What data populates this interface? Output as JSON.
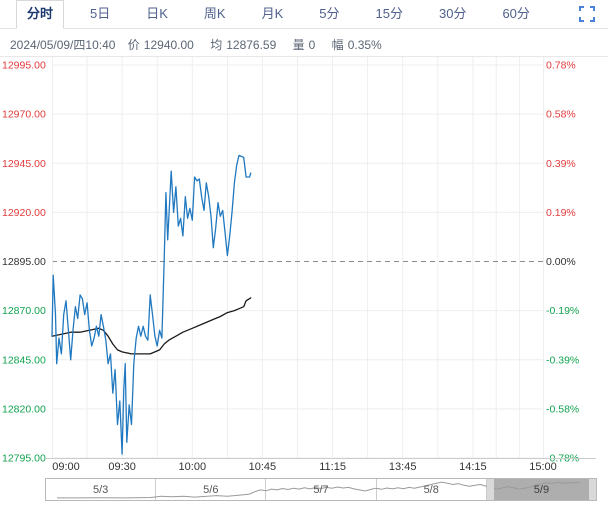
{
  "tabs": {
    "items": [
      {
        "label": "分时",
        "active": true
      },
      {
        "label": "5日"
      },
      {
        "label": "日K"
      },
      {
        "label": "周K"
      },
      {
        "label": "月K"
      },
      {
        "label": "5分"
      },
      {
        "label": "15分"
      },
      {
        "label": "30分"
      },
      {
        "label": "60分"
      }
    ],
    "fullscreen_icon_color": "#4a82d9"
  },
  "status": {
    "datetime": "2024/05/09/四10:40",
    "items": [
      {
        "label": "价",
        "value": "12940.00"
      },
      {
        "label": "均",
        "value": "12876.59"
      },
      {
        "label": "量",
        "value": "0"
      },
      {
        "label": "幅",
        "value": "0.35%"
      }
    ]
  },
  "chart_data": {
    "type": "line",
    "title": "",
    "xlabel": "",
    "ylabel": "",
    "prev_close": 12895,
    "ylim": [
      12795,
      12995
    ],
    "grid": true,
    "legend": "none",
    "colors": {
      "up": "#e23b3b",
      "down": "#11a350",
      "flat": "#333333",
      "grid": "#eeeeee",
      "baseline_dash": "#8a8a8a",
      "axis": "#cccccc",
      "tick_text": "#333333",
      "price_line": "#2079c0",
      "avg_line": "#1b1b1b"
    },
    "y_levels": [
      {
        "price": 12995,
        "left": "12995.00",
        "right": "0.78%",
        "tone": "up"
      },
      {
        "price": 12970,
        "left": "12970.00",
        "right": "0.58%",
        "tone": "up"
      },
      {
        "price": 12945,
        "left": "12945.00",
        "right": "0.39%",
        "tone": "up"
      },
      {
        "price": 12920,
        "left": "12920.00",
        "right": "0.19%",
        "tone": "up"
      },
      {
        "price": 12895,
        "left": "12895.00",
        "right": "0.00%",
        "tone": "flat"
      },
      {
        "price": 12870,
        "left": "12870.00",
        "right": "-0.19%",
        "tone": "down"
      },
      {
        "price": 12845,
        "left": "12845.00",
        "right": "-0.39%",
        "tone": "down"
      },
      {
        "price": 12820,
        "left": "12820.00",
        "right": "-0.58%",
        "tone": "down"
      },
      {
        "price": 12795,
        "left": "12795.00",
        "right": "-0.78%",
        "tone": "down"
      }
    ],
    "x_ticks": {
      "minutes": [
        0,
        30,
        60,
        90,
        120,
        150,
        180,
        225
      ],
      "labels": [
        "09:00",
        "09:30",
        "10:00",
        "10:45",
        "11:15",
        "13:45",
        "14:15",
        "15:00"
      ],
      "minor_step_minutes": 15,
      "session_total_minutes": 225
    },
    "series": [
      {
        "name": "price",
        "color": "#2079c0",
        "points": [
          [
            0,
            12857
          ],
          [
            0.5,
            12888
          ],
          [
            1.5,
            12868
          ],
          [
            2,
            12843
          ],
          [
            3,
            12856
          ],
          [
            4,
            12848
          ],
          [
            5,
            12868
          ],
          [
            6,
            12875
          ],
          [
            7,
            12860
          ],
          [
            8,
            12845
          ],
          [
            9,
            12860
          ],
          [
            10,
            12872
          ],
          [
            11,
            12866
          ],
          [
            12,
            12878
          ],
          [
            13,
            12876
          ],
          [
            14,
            12868
          ],
          [
            15,
            12874
          ],
          [
            16,
            12860
          ],
          [
            17,
            12852
          ],
          [
            18,
            12856
          ],
          [
            19,
            12862
          ],
          [
            20,
            12857
          ],
          [
            21,
            12868
          ],
          [
            22,
            12862
          ],
          [
            23,
            12855
          ],
          [
            24,
            12843
          ],
          [
            25,
            12848
          ],
          [
            26,
            12828
          ],
          [
            27,
            12840
          ],
          [
            28,
            12812
          ],
          [
            29,
            12824
          ],
          [
            30,
            12797
          ],
          [
            30.7,
            12830
          ],
          [
            31.3,
            12843
          ],
          [
            32,
            12803
          ],
          [
            33,
            12822
          ],
          [
            34,
            12812
          ],
          [
            35,
            12843
          ],
          [
            36,
            12856
          ],
          [
            37,
            12862
          ],
          [
            38,
            12857
          ],
          [
            39,
            12862
          ],
          [
            40,
            12857
          ],
          [
            41,
            12855
          ],
          [
            42,
            12878
          ],
          [
            43,
            12868
          ],
          [
            44,
            12857
          ],
          [
            45,
            12852
          ],
          [
            46,
            12860
          ],
          [
            47,
            12856
          ],
          [
            48,
            12896
          ],
          [
            48.7,
            12930
          ],
          [
            49.5,
            12906
          ],
          [
            51,
            12941
          ],
          [
            52,
            12920
          ],
          [
            53,
            12933
          ],
          [
            54,
            12913
          ],
          [
            55,
            12917
          ],
          [
            56,
            12908
          ],
          [
            57,
            12928
          ],
          [
            58,
            12917
          ],
          [
            59,
            12922
          ],
          [
            60,
            12916
          ],
          [
            61,
            12938
          ],
          [
            62,
            12936
          ],
          [
            63,
            12937
          ],
          [
            64,
            12928
          ],
          [
            65,
            12921
          ],
          [
            66,
            12935
          ],
          [
            67,
            12928
          ],
          [
            68,
            12918
          ],
          [
            69,
            12902
          ],
          [
            70,
            12912
          ],
          [
            71,
            12925
          ],
          [
            72,
            12918
          ],
          [
            73,
            12921
          ],
          [
            74,
            12910
          ],
          [
            75,
            12898
          ],
          [
            76,
            12908
          ],
          [
            77,
            12920
          ],
          [
            78,
            12935
          ],
          [
            79,
            12944
          ],
          [
            80,
            12949
          ],
          [
            82,
            12948
          ],
          [
            83,
            12938
          ],
          [
            84.5,
            12938
          ],
          [
            85,
            12940
          ]
        ]
      },
      {
        "name": "average",
        "color": "#1b1b1b",
        "points": [
          [
            0,
            12857
          ],
          [
            4,
            12858
          ],
          [
            8,
            12859
          ],
          [
            12,
            12859
          ],
          [
            16,
            12860
          ],
          [
            20,
            12861
          ],
          [
            22,
            12860
          ],
          [
            24,
            12857
          ],
          [
            26,
            12853
          ],
          [
            28,
            12850
          ],
          [
            30,
            12849
          ],
          [
            34,
            12848
          ],
          [
            38,
            12848
          ],
          [
            42,
            12848
          ],
          [
            44,
            12849
          ],
          [
            46,
            12850
          ],
          [
            48,
            12853
          ],
          [
            50,
            12855
          ],
          [
            53,
            12857
          ],
          [
            56,
            12859
          ],
          [
            60,
            12861
          ],
          [
            64,
            12863
          ],
          [
            68,
            12865
          ],
          [
            72,
            12867
          ],
          [
            75,
            12869
          ],
          [
            78,
            12870
          ],
          [
            80,
            12871
          ],
          [
            82,
            12872
          ],
          [
            83,
            12875
          ],
          [
            85,
            12876.5
          ]
        ]
      }
    ]
  },
  "navigator": {
    "dates": [
      "5/3",
      "5/6",
      "5/7",
      "5/8",
      "5/9"
    ],
    "selected": "5/9",
    "selected_index": 4,
    "spark_color": "#9a9a9a",
    "sparkline": [
      [
        2,
        90
      ],
      [
        6,
        90
      ],
      [
        10,
        89
      ],
      [
        14,
        90
      ],
      [
        19,
        88
      ],
      [
        21,
        82
      ],
      [
        23,
        85
      ],
      [
        25,
        82
      ],
      [
        27,
        86
      ],
      [
        29,
        83
      ],
      [
        31,
        79
      ],
      [
        33,
        82
      ],
      [
        35,
        77
      ],
      [
        37,
        72
      ],
      [
        38,
        60
      ],
      [
        39,
        52
      ],
      [
        40,
        56
      ],
      [
        41,
        48
      ],
      [
        42,
        52
      ],
      [
        43,
        45
      ],
      [
        44,
        50
      ],
      [
        45,
        44
      ],
      [
        46,
        48
      ],
      [
        47,
        42
      ],
      [
        48,
        47
      ],
      [
        49,
        41
      ],
      [
        50,
        45
      ],
      [
        51,
        40
      ],
      [
        52,
        44
      ],
      [
        53,
        38
      ],
      [
        54,
        43
      ],
      [
        55,
        40
      ],
      [
        56,
        47
      ],
      [
        57,
        52
      ],
      [
        58,
        57
      ],
      [
        59,
        50
      ],
      [
        60,
        44
      ],
      [
        61,
        49
      ],
      [
        62,
        43
      ],
      [
        63,
        47
      ],
      [
        64,
        42
      ],
      [
        65,
        46
      ],
      [
        66,
        40
      ],
      [
        67,
        44
      ],
      [
        68,
        38
      ],
      [
        69,
        33
      ],
      [
        70,
        26
      ],
      [
        71,
        20
      ],
      [
        72,
        15
      ],
      [
        73,
        20
      ],
      [
        74,
        26
      ],
      [
        75,
        22
      ],
      [
        76,
        30
      ],
      [
        77,
        35
      ],
      [
        78,
        30
      ],
      [
        79,
        26
      ],
      [
        80,
        34
      ],
      [
        81,
        42
      ],
      [
        82,
        48
      ],
      [
        83,
        42
      ],
      [
        84,
        36
      ],
      [
        85,
        42
      ],
      [
        86,
        48
      ],
      [
        87,
        44
      ],
      [
        88,
        38
      ],
      [
        89,
        30
      ],
      [
        90,
        24
      ],
      [
        91,
        18
      ],
      [
        92,
        22
      ],
      [
        93,
        16
      ],
      [
        94,
        20
      ],
      [
        95,
        17
      ],
      [
        96,
        18
      ],
      [
        97,
        17
      ]
    ]
  }
}
